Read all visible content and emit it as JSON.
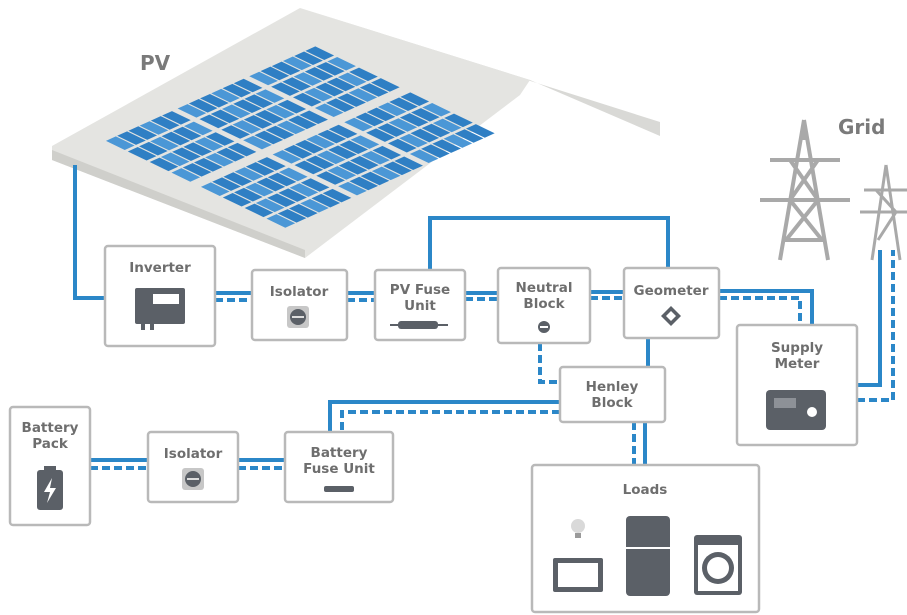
{
  "header": {
    "pv": "PV",
    "grid": "Grid"
  },
  "nodes": [
    {
      "lines": [
        "Inverter"
      ]
    },
    {
      "lines": [
        "Isolator"
      ]
    },
    {
      "lines": [
        "PV Fuse",
        "Unit"
      ]
    },
    {
      "lines": [
        "Neutral",
        "Block"
      ]
    },
    {
      "lines": [
        "Geometer"
      ]
    },
    {
      "lines": [
        "Supply",
        "Meter"
      ]
    },
    {
      "lines": [
        "Henley",
        "Block"
      ]
    },
    {
      "lines": [
        "Battery",
        "Pack"
      ]
    },
    {
      "lines": [
        "Isolator"
      ]
    },
    {
      "lines": [
        "Battery",
        "Fuse Unit"
      ]
    },
    {
      "lines": [
        "Loads"
      ]
    }
  ]
}
